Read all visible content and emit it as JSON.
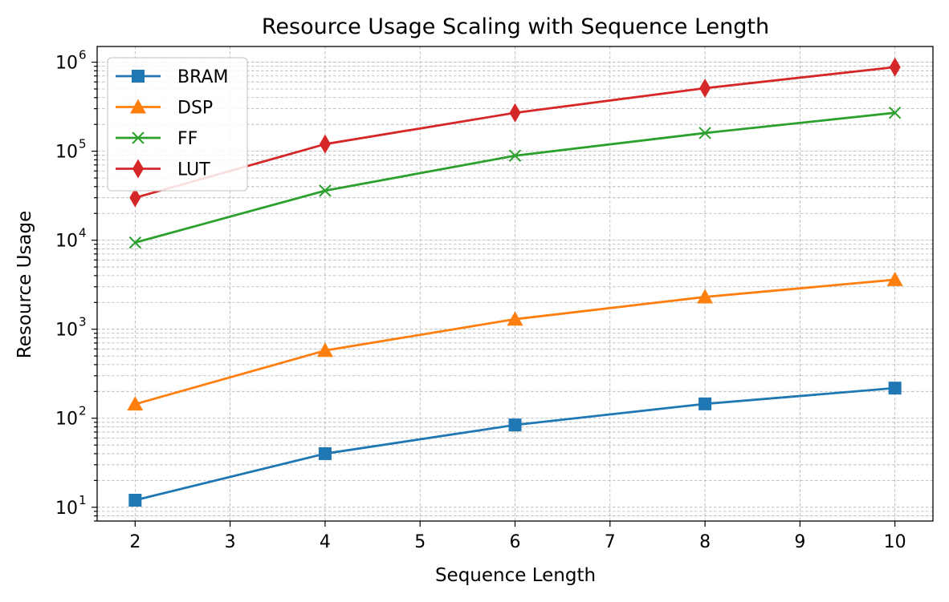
{
  "chart_data": {
    "type": "line",
    "title": "Resource Usage Scaling with Sequence Length",
    "xlabel": "Sequence Length",
    "ylabel": "Resource Usage",
    "x": [
      2,
      4,
      6,
      8,
      10
    ],
    "xlim": [
      1.6,
      10.4
    ],
    "x_ticks": [
      2,
      3,
      4,
      5,
      6,
      7,
      8,
      9,
      10
    ],
    "yscale": "log",
    "ylim": [
      7,
      1500000
    ],
    "y_ticks": [
      {
        "base": "10",
        "exp": "1",
        "value": 10
      },
      {
        "base": "10",
        "exp": "2",
        "value": 100
      },
      {
        "base": "10",
        "exp": "3",
        "value": 1000
      },
      {
        "base": "10",
        "exp": "4",
        "value": 10000
      },
      {
        "base": "10",
        "exp": "5",
        "value": 100000
      },
      {
        "base": "10",
        "exp": "6",
        "value": 1000000
      }
    ],
    "grid": true,
    "legend_position": "upper left",
    "series": [
      {
        "name": "BRAM",
        "color": "#1f77b4",
        "marker": "square",
        "values": [
          12,
          40,
          84,
          145,
          218
        ]
      },
      {
        "name": "DSP",
        "color": "#ff7f0e",
        "marker": "triangle",
        "values": [
          144,
          576,
          1296,
          2304,
          3600
        ]
      },
      {
        "name": "FF",
        "color": "#2ca02c",
        "marker": "x",
        "values": [
          9400,
          36000,
          89000,
          160000,
          270000
        ]
      },
      {
        "name": "LUT",
        "color": "#d62728",
        "marker": "thin-diamond",
        "values": [
          30000,
          120000,
          270000,
          510000,
          880000
        ]
      }
    ]
  }
}
